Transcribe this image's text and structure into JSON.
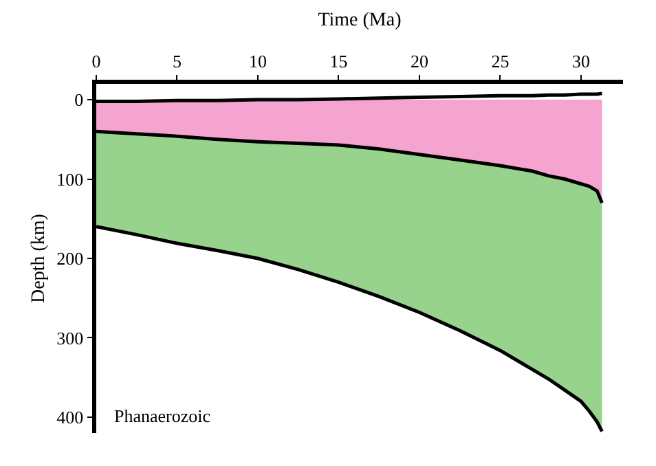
{
  "chart_data": {
    "type": "area",
    "stacked": true,
    "xlabel": "Time (Ma)",
    "ylabel": "Depth (km)",
    "xlim": [
      0,
      32.6
    ],
    "xticks": [
      0,
      5,
      10,
      15,
      20,
      25,
      30
    ],
    "ylim": [
      420,
      -20
    ],
    "yticks": [
      0,
      100,
      200,
      300,
      400
    ],
    "marker": "none",
    "annotations": [
      "Phanaerozoic"
    ],
    "x": [
      0,
      2.5,
      5,
      7.5,
      10,
      12.5,
      15,
      17.5,
      20,
      22.5,
      25,
      27,
      28,
      29,
      30,
      30.5,
      31,
      31.3
    ],
    "series": [
      {
        "type": "line",
        "color": "#000000",
        "values": [
          2,
          2,
          1,
          1,
          0,
          0,
          -1,
          -2,
          -3,
          -4,
          -5,
          -5,
          -6,
          -6,
          -7,
          -7,
          -7,
          -8
        ]
      },
      {
        "color": "#f5a3cf",
        "values": [
          40,
          43,
          46,
          50,
          53,
          55,
          57,
          62,
          69,
          76,
          83,
          90,
          96,
          100,
          106,
          109,
          115,
          130
        ]
      },
      {
        "color": "#98d38e",
        "values": [
          120,
          127,
          135,
          140,
          147,
          159,
          173,
          186,
          199,
          215,
          233,
          250,
          256,
          266,
          274,
          283,
          291,
          288
        ]
      }
    ]
  }
}
